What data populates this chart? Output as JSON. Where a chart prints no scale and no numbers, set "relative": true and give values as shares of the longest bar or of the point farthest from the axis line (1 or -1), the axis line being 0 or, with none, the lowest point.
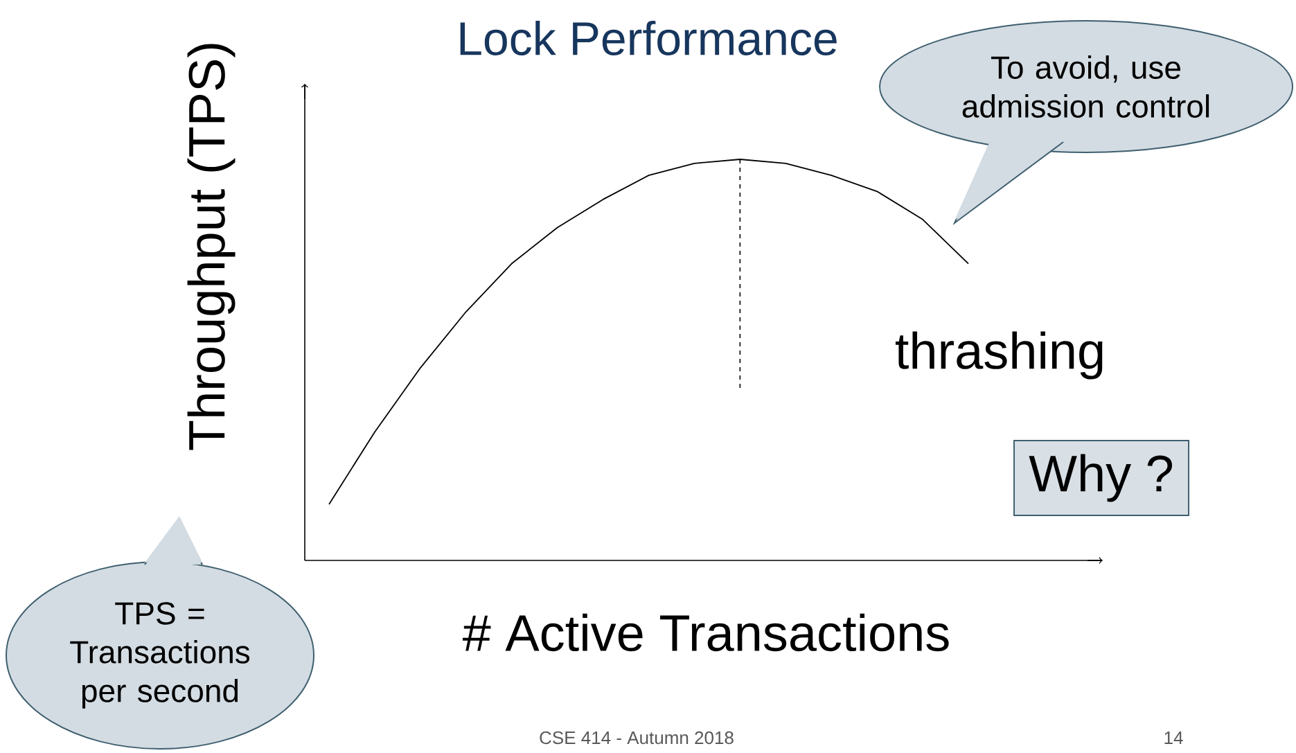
{
  "chart_data": {
    "type": "line",
    "title": "Lock Performance",
    "xlabel": "# Active Transactions",
    "ylabel": "Throughput (TPS)",
    "relative": true,
    "categories": [
      null,
      null,
      null,
      null,
      null,
      null,
      null,
      null,
      null,
      null,
      null,
      null,
      null,
      null,
      null
    ],
    "series": [
      {
        "color": "#000000",
        "values": [
          0.14,
          0.32,
          0.48,
          0.62,
          0.74,
          0.83,
          0.9,
          0.96,
          0.99,
          1.0,
          0.99,
          0.96,
          0.92,
          0.85,
          0.74
        ]
      }
    ],
    "annotations": [
      "To avoid, use admission control",
      "thrashing",
      "Why ?",
      "TPS = Transactions per second",
      "CSE 414 - Autumn 2018",
      "14"
    ]
  }
}
